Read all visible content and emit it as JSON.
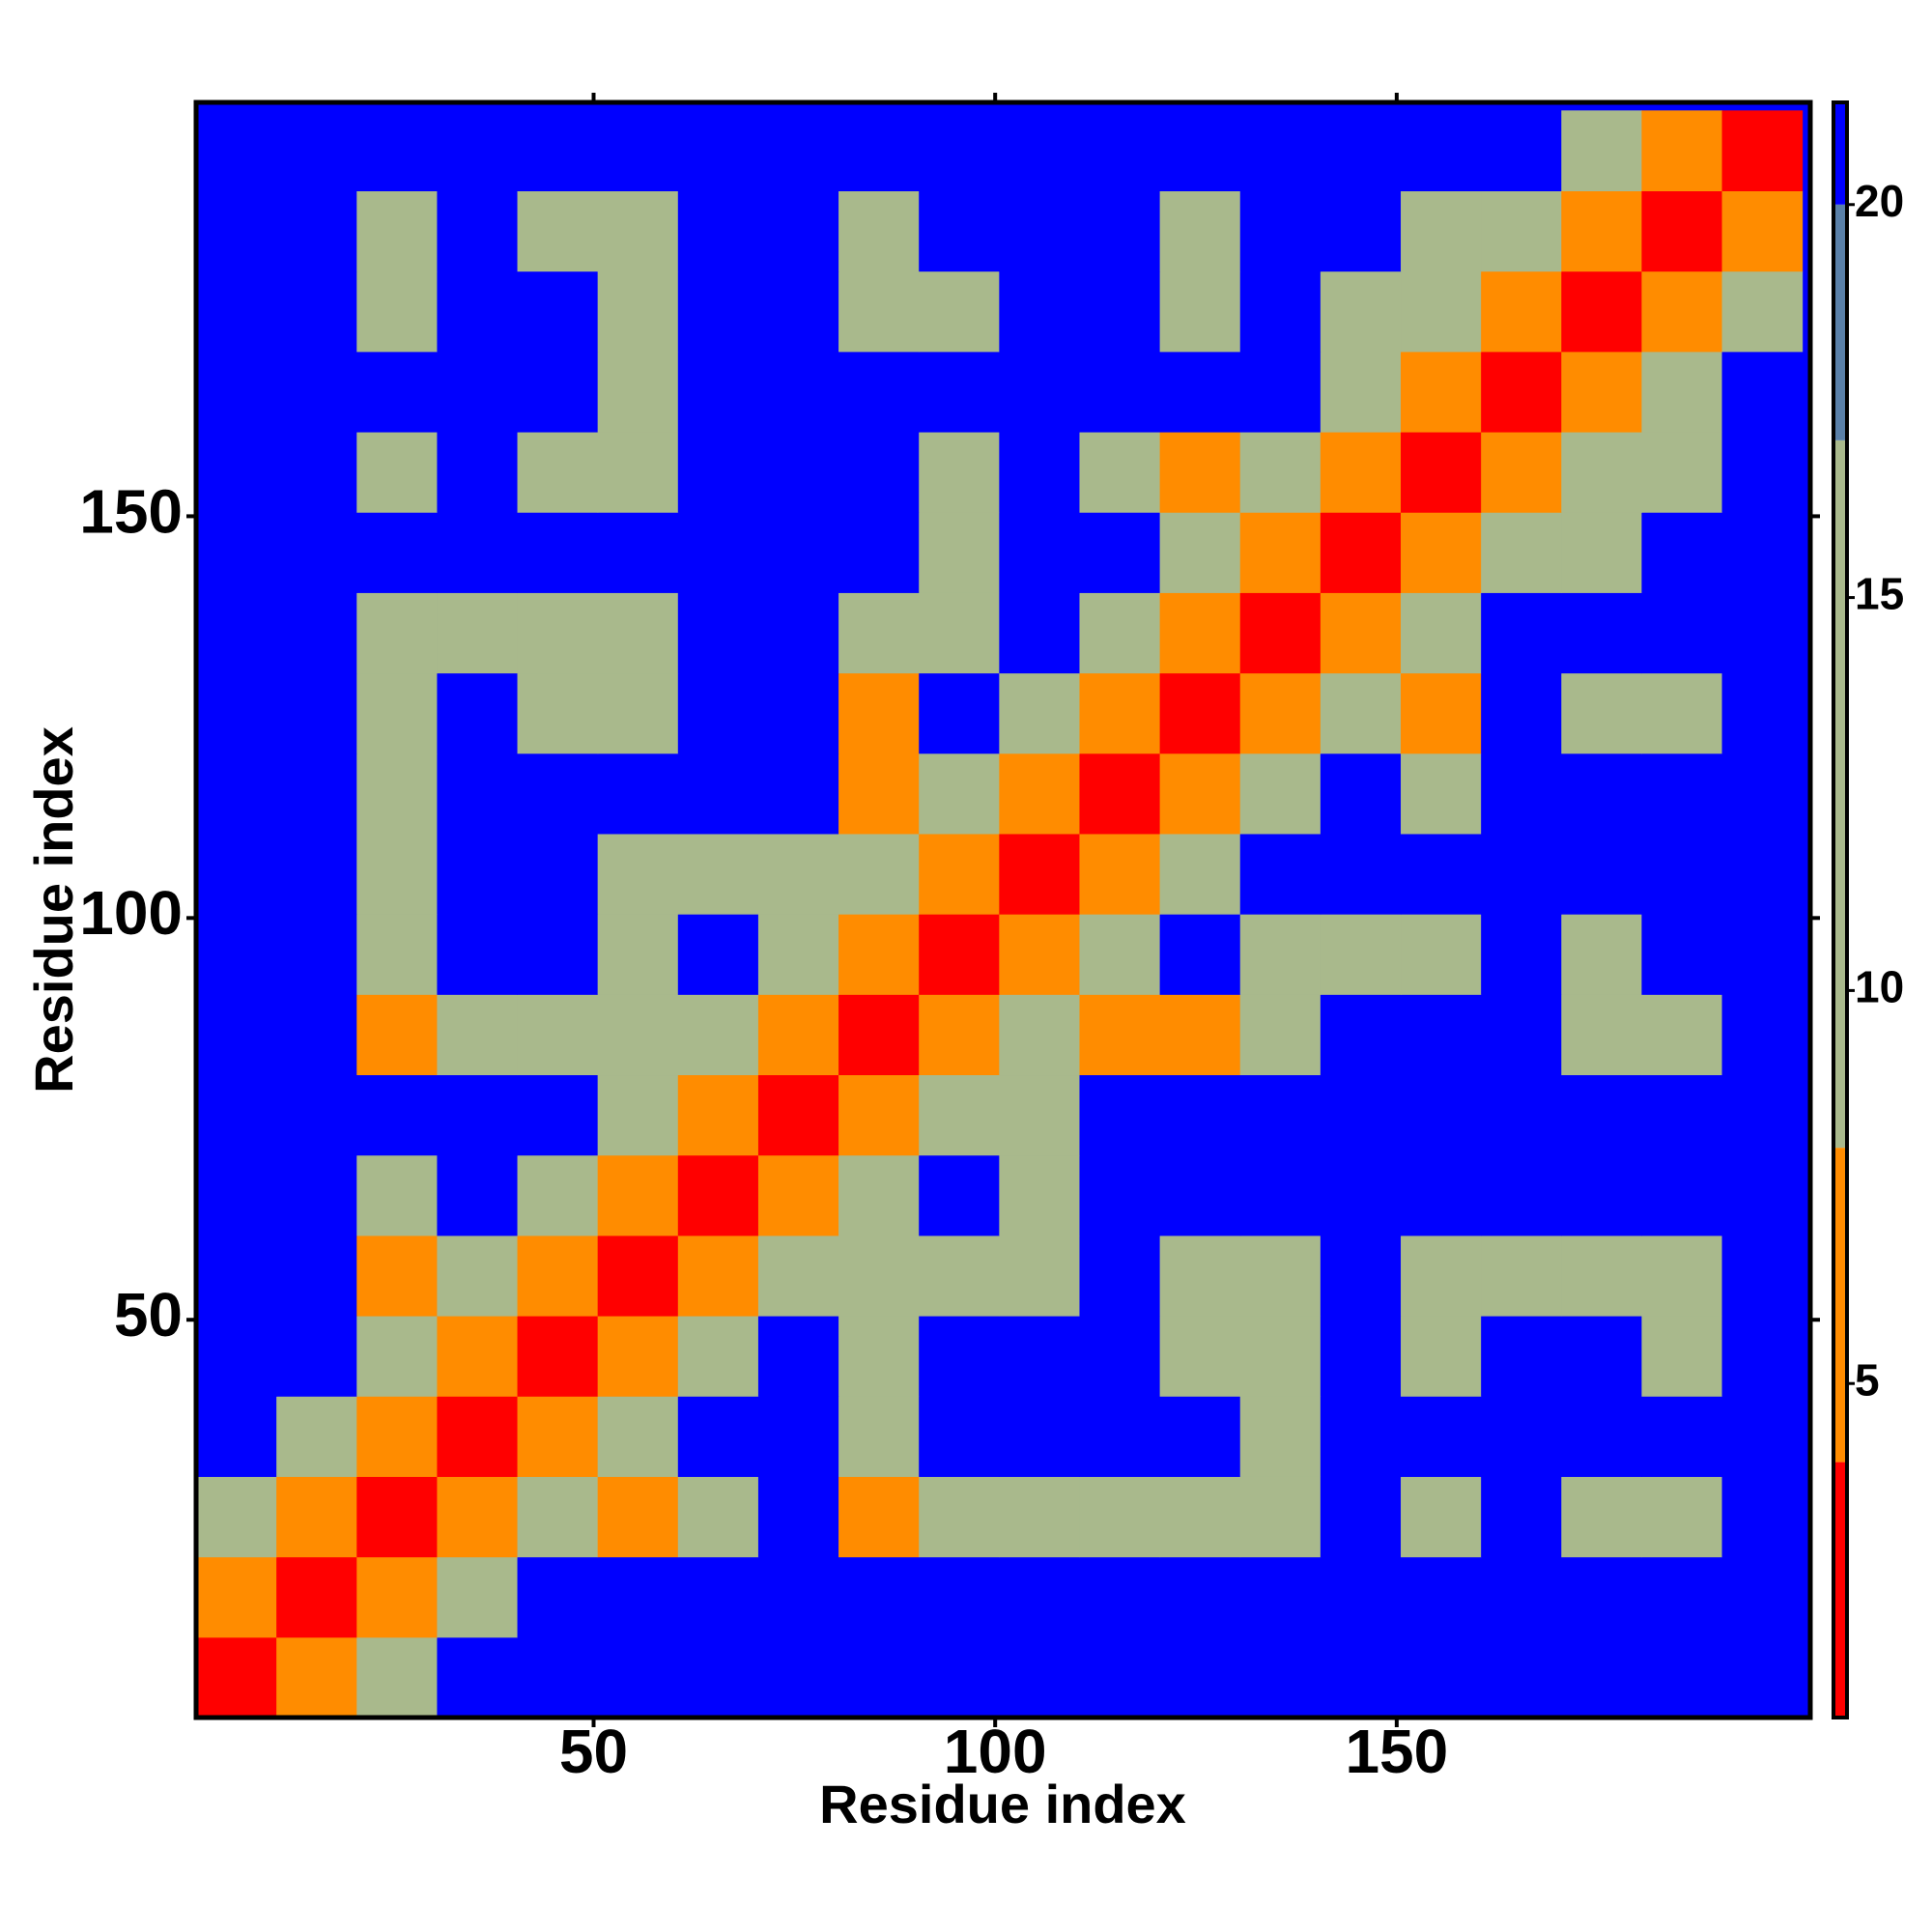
{
  "chart_data": {
    "type": "heatmap",
    "xlabel": "Residue index",
    "ylabel": "Residue index",
    "x": [
      5.5,
      15.5,
      25.5,
      35.5,
      45.5,
      55.5,
      65.5,
      75.5,
      85.5,
      95.5,
      105.5,
      115.5,
      125.5,
      135.5,
      145.5,
      155.5,
      165.5,
      175.5,
      185.5,
      195.5
    ],
    "y": [
      5.5,
      15.5,
      25.5,
      35.5,
      45.5,
      55.5,
      65.5,
      75.5,
      85.5,
      95.5,
      105.5,
      115.5,
      125.5,
      135.5,
      145.5,
      155.5,
      165.5,
      175.5,
      185.5,
      195.5
    ],
    "values": [
      [
        2,
        7,
        12,
        21,
        21,
        21,
        21,
        21,
        21,
        21,
        21,
        21,
        21,
        21,
        21,
        21,
        21,
        21,
        21,
        21
      ],
      [
        7,
        2,
        7,
        12,
        21,
        21,
        21,
        21,
        21,
        21,
        21,
        21,
        21,
        21,
        21,
        21,
        21,
        21,
        21,
        21
      ],
      [
        12,
        7,
        2,
        7,
        12,
        8,
        9,
        21,
        7,
        9,
        11,
        11,
        11,
        11,
        21,
        12,
        21,
        13,
        11,
        21
      ],
      [
        21,
        12,
        7,
        2,
        7,
        10,
        21,
        21,
        11,
        21,
        21,
        21,
        21,
        11,
        21,
        21,
        21,
        21,
        21,
        21
      ],
      [
        21,
        21,
        12,
        7,
        2,
        7,
        12,
        21,
        11,
        21,
        21,
        21,
        11,
        12,
        21,
        13,
        21,
        21,
        11,
        21
      ],
      [
        21,
        21,
        8,
        10,
        7,
        2,
        7,
        10,
        11,
        11,
        11,
        21,
        11,
        12,
        21,
        13,
        11,
        11,
        11,
        21
      ],
      [
        21,
        21,
        9,
        21,
        12,
        7,
        2,
        7,
        12,
        21,
        11,
        21,
        21,
        21,
        21,
        21,
        21,
        21,
        21,
        21
      ],
      [
        21,
        21,
        21,
        21,
        21,
        10,
        7,
        2,
        7,
        11,
        11,
        21,
        21,
        21,
        21,
        21,
        21,
        21,
        21,
        21
      ],
      [
        21,
        21,
        7,
        11,
        11,
        11,
        12,
        7,
        2,
        7,
        11,
        8,
        8,
        11,
        21,
        21,
        21,
        12,
        11,
        21
      ],
      [
        21,
        21,
        9,
        21,
        21,
        11,
        21,
        11,
        7,
        2,
        7,
        12,
        21,
        11,
        11,
        12,
        21,
        12,
        21,
        21
      ],
      [
        21,
        21,
        11,
        21,
        21,
        11,
        11,
        11,
        11,
        7,
        2,
        7,
        10,
        21,
        21,
        21,
        21,
        21,
        21,
        21
      ],
      [
        21,
        21,
        11,
        21,
        21,
        21,
        21,
        21,
        8,
        12,
        7,
        2,
        7,
        12,
        21,
        10,
        21,
        21,
        21,
        21
      ],
      [
        21,
        21,
        11,
        21,
        11,
        11,
        21,
        21,
        8,
        21,
        10,
        7,
        2,
        7,
        12,
        8,
        21,
        12,
        11,
        21
      ],
      [
        21,
        21,
        11,
        11,
        12,
        12,
        21,
        21,
        11,
        11,
        21,
        12,
        7,
        2,
        7,
        10,
        21,
        21,
        21,
        21
      ],
      [
        21,
        21,
        21,
        21,
        21,
        21,
        21,
        21,
        21,
        11,
        21,
        21,
        12,
        7,
        2,
        7,
        12,
        11,
        21,
        21
      ],
      [
        21,
        21,
        12,
        21,
        13,
        13,
        21,
        21,
        21,
        12,
        21,
        10,
        8,
        10,
        7,
        2,
        7,
        12,
        10,
        21
      ],
      [
        21,
        21,
        21,
        21,
        21,
        11,
        21,
        21,
        21,
        21,
        21,
        21,
        21,
        21,
        12,
        7,
        2,
        7,
        9,
        21
      ],
      [
        21,
        21,
        13,
        21,
        21,
        11,
        21,
        21,
        12,
        12,
        21,
        21,
        12,
        21,
        11,
        12,
        7,
        2,
        7,
        12
      ],
      [
        21,
        21,
        11,
        21,
        11,
        11,
        21,
        21,
        11,
        21,
        21,
        21,
        11,
        21,
        21,
        10,
        9,
        7,
        2,
        7
      ],
      [
        21,
        21,
        21,
        21,
        21,
        21,
        21,
        21,
        21,
        21,
        21,
        21,
        21,
        21,
        21,
        21,
        21,
        12,
        7,
        2
      ]
    ],
    "xlim": [
      0.5,
      201.5
    ],
    "ylim": [
      0.5,
      201.5
    ],
    "xticks": [
      50,
      100,
      150
    ],
    "yticks": [
      50,
      100,
      150
    ],
    "clim": [
      0.75,
      21.3
    ],
    "cticks": [
      5,
      10,
      15,
      20
    ],
    "colorscale": [
      {
        "value": 4,
        "color": "#ff0000"
      },
      {
        "value": 8,
        "color": "#ff8c00"
      },
      {
        "value": 17,
        "color": "#a9b98c"
      },
      {
        "value": 20,
        "color": "#5a80a8"
      },
      {
        "value": 21.3,
        "color": "#0000ff"
      }
    ]
  }
}
